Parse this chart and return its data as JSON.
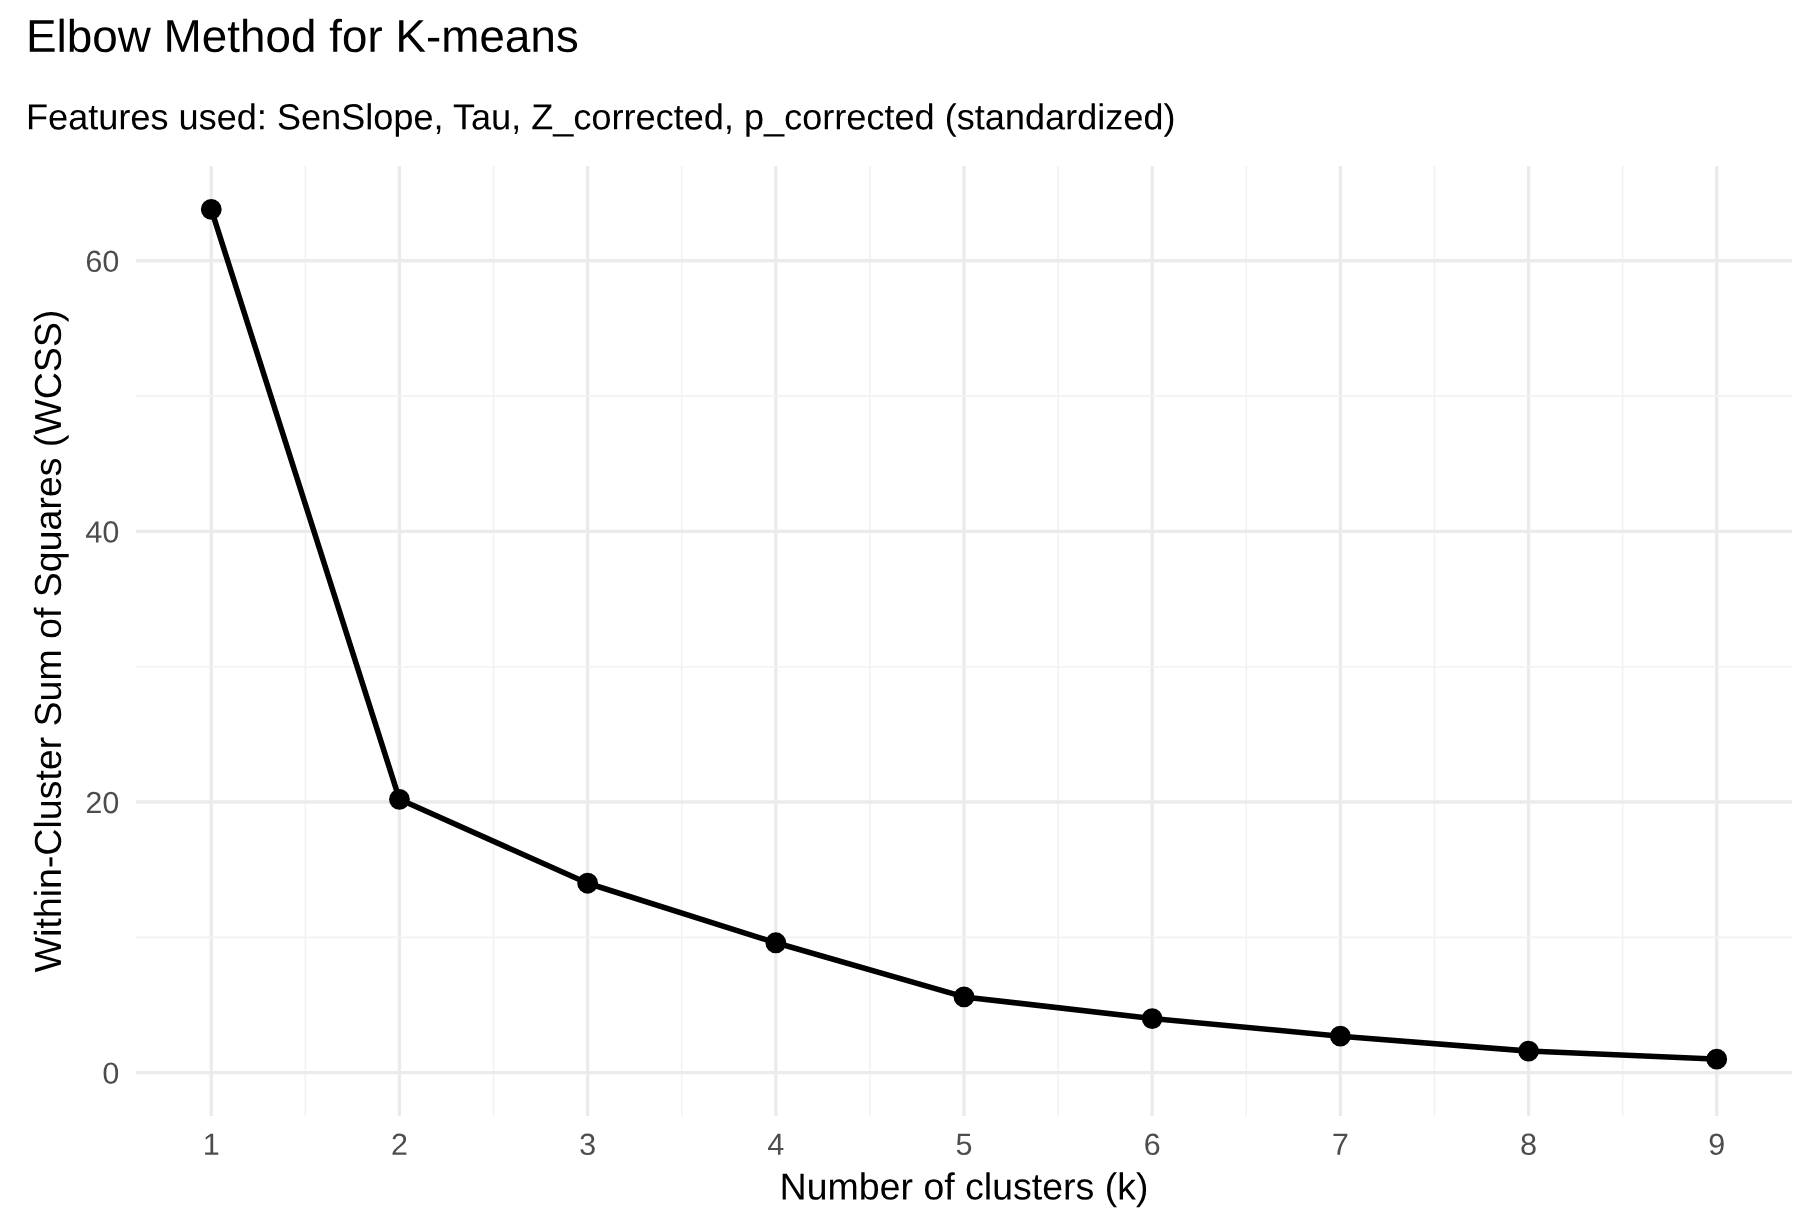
{
  "chart_data": {
    "type": "line",
    "title": "Elbow Method for K-means",
    "subtitle": "Features used: SenSlope, Tau, Z_corrected, p_corrected (standardized)",
    "xlabel": "Number of clusters (k)",
    "ylabel": "Within-Cluster Sum of Squares (WCSS)",
    "x": [
      1,
      2,
      3,
      4,
      5,
      6,
      7,
      8,
      9
    ],
    "series": [
      {
        "color": "#000000",
        "values": [
          63.8,
          20.2,
          14.0,
          9.6,
          5.6,
          4.0,
          2.7,
          1.6,
          1.0
        ]
      }
    ],
    "xlim": [
      0.6,
      9.4
    ],
    "xticks": [
      1,
      2,
      3,
      4,
      5,
      6,
      7,
      8,
      9
    ],
    "ylim": [
      -3.2,
      67
    ],
    "yticks": [
      0,
      20,
      40,
      60
    ],
    "grid": true,
    "marker": "circle",
    "line_style": "solid",
    "legend": false
  }
}
